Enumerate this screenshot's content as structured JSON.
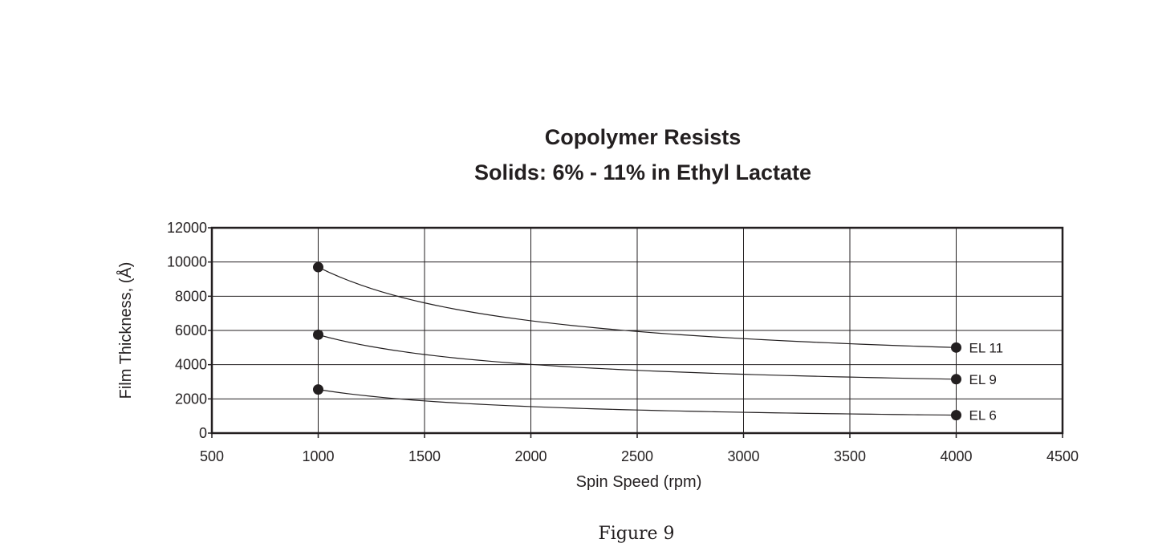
{
  "chart_data": {
    "type": "line",
    "title": "Copolymer Resists",
    "subtitle": "Solids: 6% - 11% in Ethyl Lactate",
    "xlabel": "Spin Speed (rpm)",
    "ylabel": "Film Thickness, (Å)",
    "xlim": [
      500,
      4500
    ],
    "ylim": [
      0,
      12000
    ],
    "xticks": [
      500,
      1000,
      1500,
      2000,
      2500,
      3000,
      3500,
      4000,
      4500
    ],
    "yticks": [
      0,
      2000,
      4000,
      6000,
      8000,
      10000,
      12000
    ],
    "grid": true,
    "series": [
      {
        "name": "EL 11",
        "x": [
          1000,
          4000
        ],
        "y": [
          9700,
          5000
        ]
      },
      {
        "name": "EL 9",
        "x": [
          1000,
          4000
        ],
        "y": [
          5750,
          3150
        ]
      },
      {
        "name": "EL 6",
        "x": [
          1000,
          4000
        ],
        "y": [
          2550,
          1050
        ]
      }
    ],
    "colors": {
      "ink": "#231f20",
      "grid": "#231f20"
    }
  },
  "caption": "Figure 9"
}
